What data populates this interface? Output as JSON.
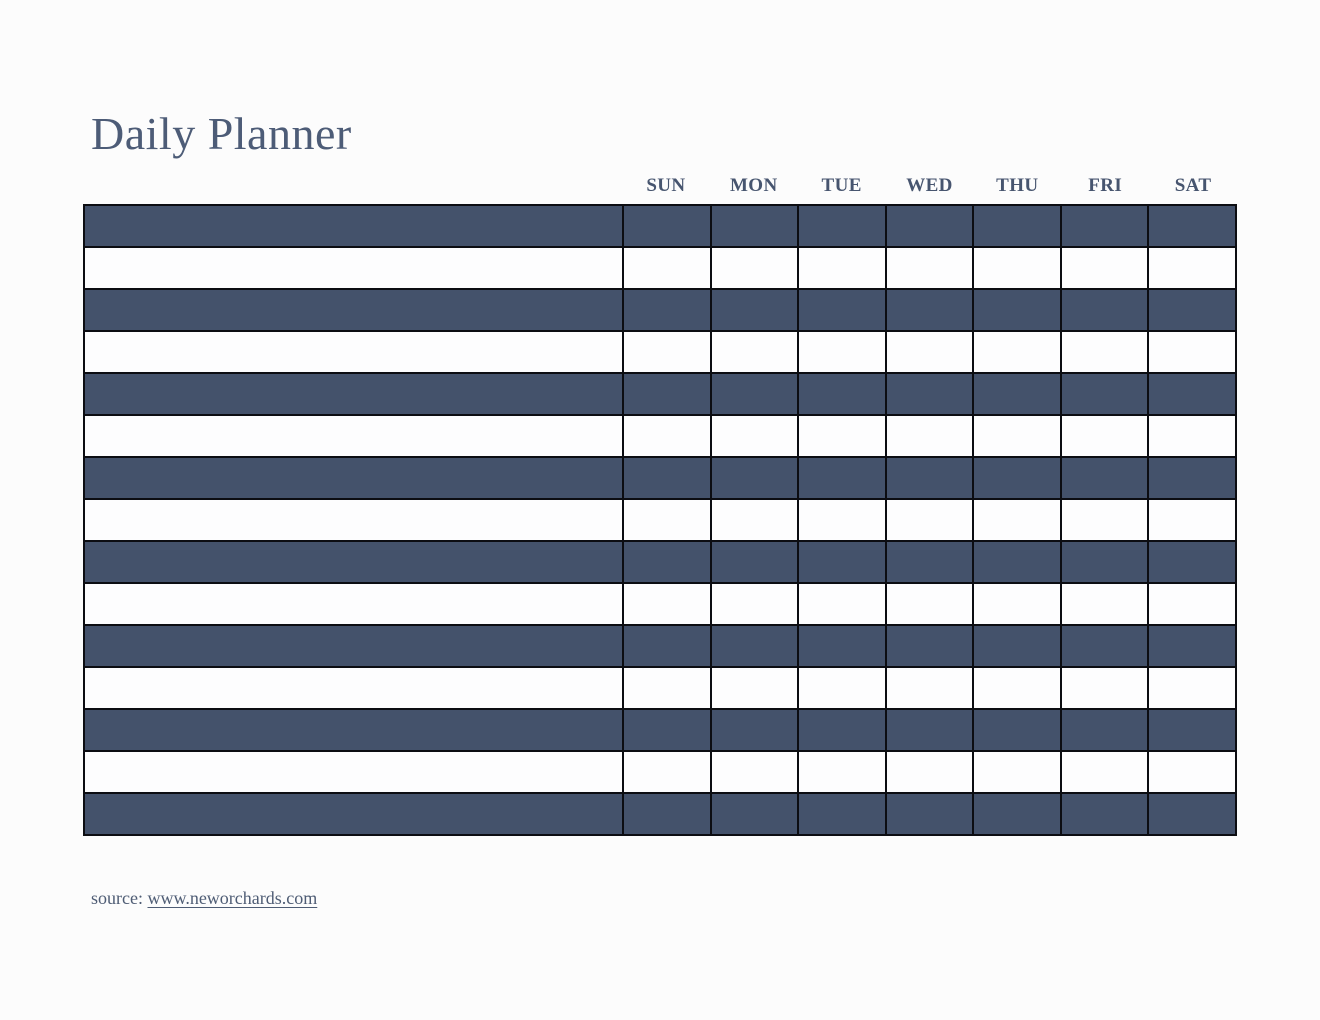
{
  "title": "Daily Planner",
  "days": [
    "SUN",
    "MON",
    "TUE",
    "WED",
    "THU",
    "FRI",
    "SAT"
  ],
  "planner": {
    "row_count": 15,
    "columns_per_row": 8,
    "first_row_shaded": true,
    "cells_empty": true
  },
  "colors": {
    "row_dark": "#44526B",
    "row_light": "#FDFDFE",
    "border": "#0C0D12",
    "text": "#4D5C77",
    "page_background": "#FCFCFC"
  },
  "footer": {
    "label": "source:",
    "link_text": "www.neworchards.com"
  }
}
